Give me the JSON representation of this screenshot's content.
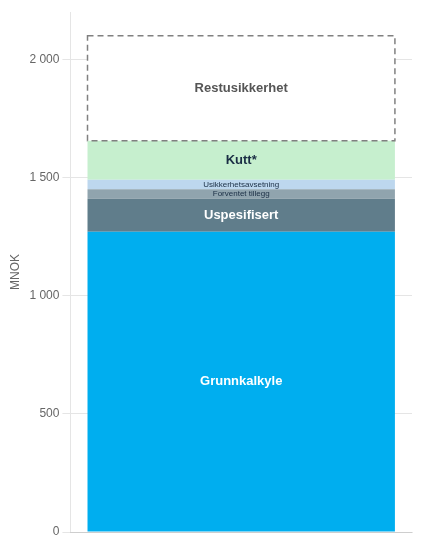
{
  "chart_data": {
    "type": "bar",
    "stacked": true,
    "categories": [
      null
    ],
    "series": [
      {
        "name": "Grunnkalkyle",
        "color": "#00AEEF",
        "values": [
          1270
        ]
      },
      {
        "name": "Uspesifisert",
        "color": "#607D8B",
        "values": [
          140
        ]
      },
      {
        "name": "Forventet tillegg",
        "color": "#90A4AE",
        "values": [
          40
        ]
      },
      {
        "name": "Usikkerhetsavsetning",
        "color": "#BDD7EE",
        "values": [
          40
        ]
      },
      {
        "name": "Kutt*",
        "color": "#C6EFCE",
        "values": [
          165
        ]
      },
      {
        "name": "Restusikkerhet",
        "color": "#808080",
        "line_style": "dashed",
        "values": [
          445
        ]
      }
    ],
    "y_label": "MNOK",
    "ylim": [
      0,
      2200
    ],
    "yticks": [
      0,
      500,
      {
        "value": 1000,
        "label": "1 000"
      },
      {
        "value": 1500,
        "label": "1 500"
      },
      {
        "value": 2000,
        "label": "2 000"
      }
    ],
    "grid": true,
    "tick_labels": "y"
  }
}
